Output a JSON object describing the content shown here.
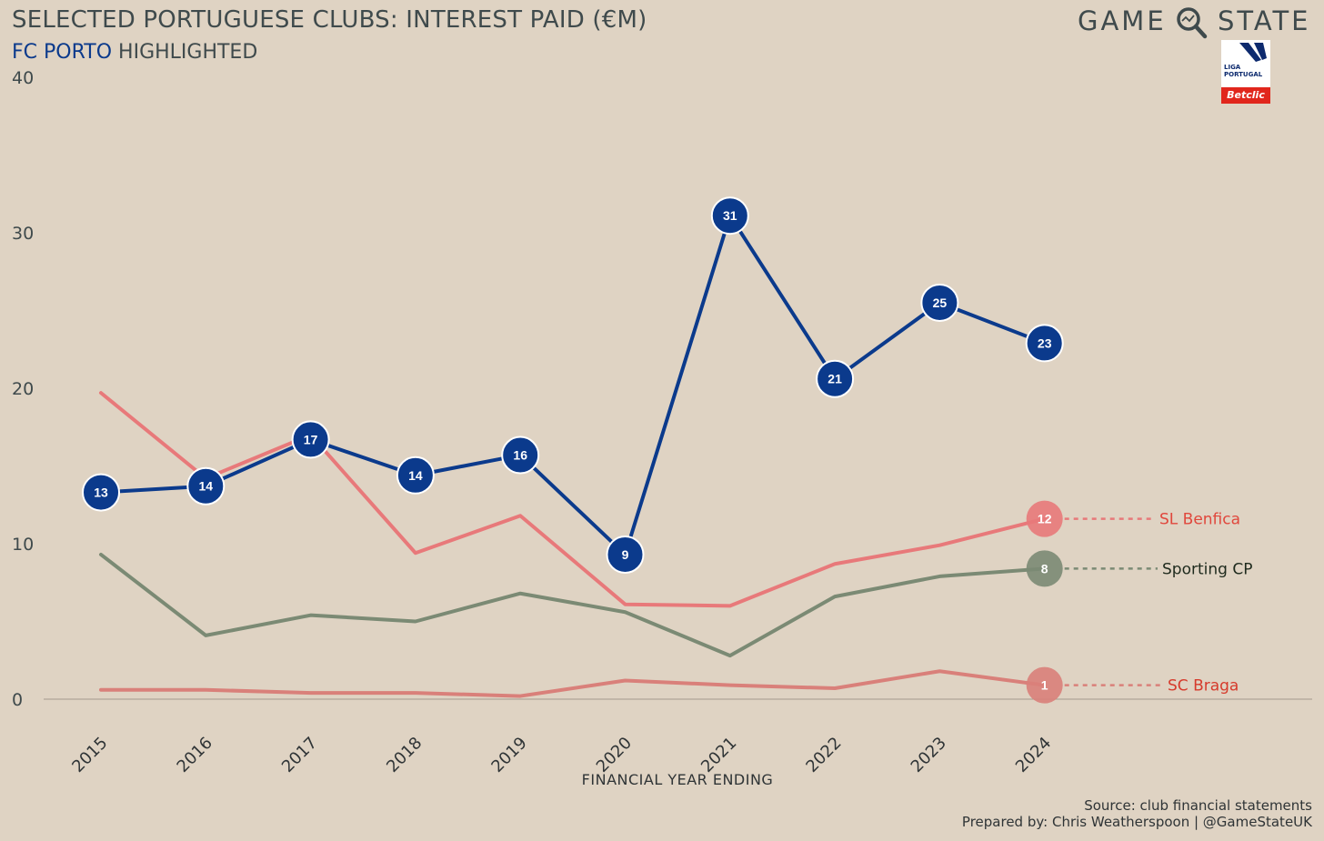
{
  "header": {
    "title": "SELECTED PORTUGUESE CLUBS: INTEREST PAID (€M)",
    "subtitle_highlight": "FC PORTO",
    "subtitle_rest": " HIGHLIGHTED"
  },
  "brand": {
    "left": "GAME",
    "right": "STATE",
    "liga_line1": "LIGA",
    "liga_line2": "PORTUGAL",
    "liga_sponsor": "Betclic"
  },
  "footer": {
    "source": "Source: club financial statements",
    "prepared": "Prepared by: Chris Weatherspoon | @GameStateUK"
  },
  "colors": {
    "background": "#dfd3c3",
    "porto": "#0b3a8c",
    "benfica": "#e8797a",
    "sporting": "#7b8a74",
    "braga": "#d9807a",
    "benfica_label": "#e0473c",
    "sporting_label": "#1e2a1d",
    "braga_label": "#d63b2c",
    "axis_text": "#3f4a4c"
  },
  "chart_data": {
    "type": "line",
    "x": [
      "2015",
      "2016",
      "2017",
      "2018",
      "2019",
      "2020",
      "2021",
      "2022",
      "2023",
      "2024"
    ],
    "xlabel": "FINANCIAL YEAR ENDING",
    "ylabel": "",
    "ylim": [
      0,
      40
    ],
    "yticks": [
      "0",
      "10",
      "20",
      "30",
      "40"
    ],
    "grid": false,
    "series": [
      {
        "name": "SL Benfica",
        "values": [
          19.7,
          14.2,
          17.0,
          9.4,
          11.8,
          6.1,
          6.0,
          8.7,
          9.9,
          11.6
        ],
        "end_label": "12"
      },
      {
        "name": "Sporting CP",
        "values": [
          9.3,
          4.1,
          5.4,
          5.0,
          6.8,
          5.6,
          2.8,
          6.6,
          7.9,
          8.4
        ],
        "end_label": "8"
      },
      {
        "name": "SC Braga",
        "values": [
          0.6,
          0.6,
          0.4,
          0.4,
          0.2,
          1.2,
          0.9,
          0.7,
          1.8,
          0.9
        ],
        "end_label": "1"
      },
      {
        "name": "",
        "values": [
          13.3,
          13.7,
          16.7,
          14.4,
          15.7,
          9.3,
          31.1,
          20.6,
          25.5,
          22.9
        ],
        "point_labels": [
          "13",
          "14",
          "17",
          "14",
          "16",
          "9",
          "31",
          "21",
          "25",
          "23"
        ]
      }
    ]
  }
}
